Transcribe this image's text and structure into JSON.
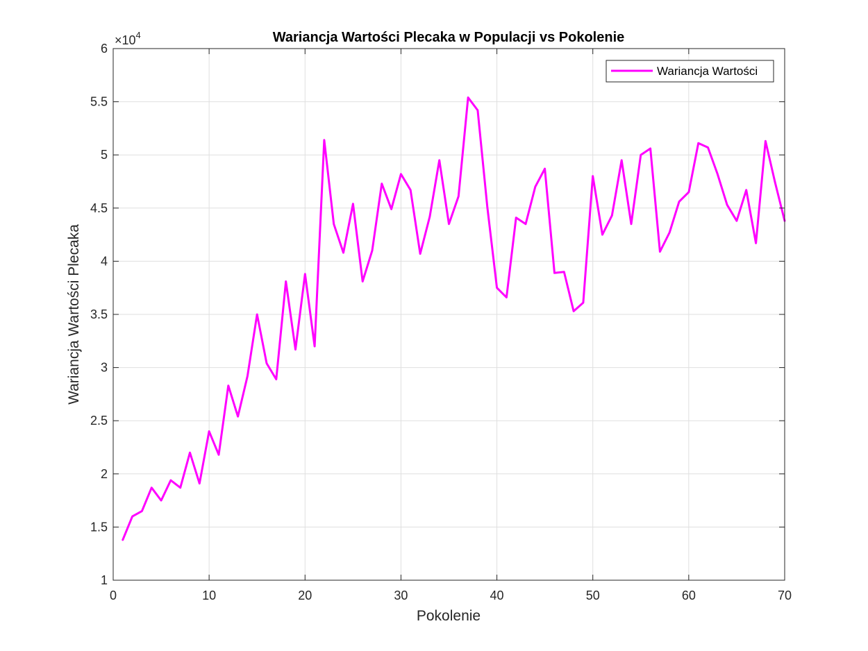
{
  "chart_data": {
    "type": "line",
    "title": "Wariancja Wartości Plecaka w Populacji vs Pokolenie",
    "xlabel": "Pokolenie",
    "ylabel": "Wariancja Wartości Plecaka",
    "y_exponent_base": "×10",
    "y_exponent_power": "4",
    "xlim": [
      0,
      70
    ],
    "ylim": [
      1,
      6
    ],
    "x_ticks": [
      0,
      10,
      20,
      30,
      40,
      50,
      60,
      70
    ],
    "x_tick_labels": [
      "0",
      "10",
      "20",
      "30",
      "40",
      "50",
      "60",
      "70"
    ],
    "y_ticks": [
      1,
      1.5,
      2,
      2.5,
      3,
      3.5,
      4,
      4.5,
      5,
      5.5,
      6
    ],
    "y_tick_labels": [
      "1",
      "1.5",
      "2",
      "2.5",
      "3",
      "3.5",
      "4",
      "4.5",
      "5",
      "5.5",
      "6"
    ],
    "grid": true,
    "legend_position": "top-right",
    "series": [
      {
        "name": "Wariancja Wartości",
        "color": "#ff00ff",
        "x": [
          1,
          2,
          3,
          4,
          5,
          6,
          7,
          8,
          9,
          10,
          11,
          12,
          13,
          14,
          15,
          16,
          17,
          18,
          19,
          20,
          21,
          22,
          23,
          24,
          25,
          26,
          27,
          28,
          29,
          30,
          31,
          32,
          33,
          34,
          35,
          36,
          37,
          38,
          39,
          40,
          41,
          42,
          43,
          44,
          45,
          46,
          47,
          48,
          49,
          50,
          51,
          52,
          53,
          54,
          55,
          56,
          57,
          58,
          59,
          60,
          61,
          62,
          63,
          64,
          65,
          66,
          67,
          68,
          69,
          70
        ],
        "y": [
          1.38,
          1.6,
          1.65,
          1.87,
          1.75,
          1.94,
          1.87,
          2.2,
          1.91,
          2.4,
          2.18,
          2.83,
          2.54,
          2.92,
          3.5,
          3.04,
          2.89,
          3.81,
          3.17,
          3.88,
          3.2,
          5.14,
          4.35,
          4.08,
          4.54,
          3.81,
          4.1,
          4.73,
          4.49,
          4.82,
          4.67,
          4.07,
          4.42,
          4.95,
          4.35,
          4.61,
          5.54,
          5.42,
          4.51,
          3.75,
          3.66,
          4.41,
          4.35,
          4.7,
          4.87,
          3.89,
          3.9,
          3.53,
          3.61,
          4.8,
          4.25,
          4.43,
          4.95,
          4.35,
          5.0,
          5.06,
          4.09,
          4.27,
          4.56,
          4.65,
          5.11,
          5.07,
          4.82,
          4.53,
          4.38,
          4.67,
          4.17,
          5.13,
          4.74,
          4.38
        ]
      }
    ]
  }
}
